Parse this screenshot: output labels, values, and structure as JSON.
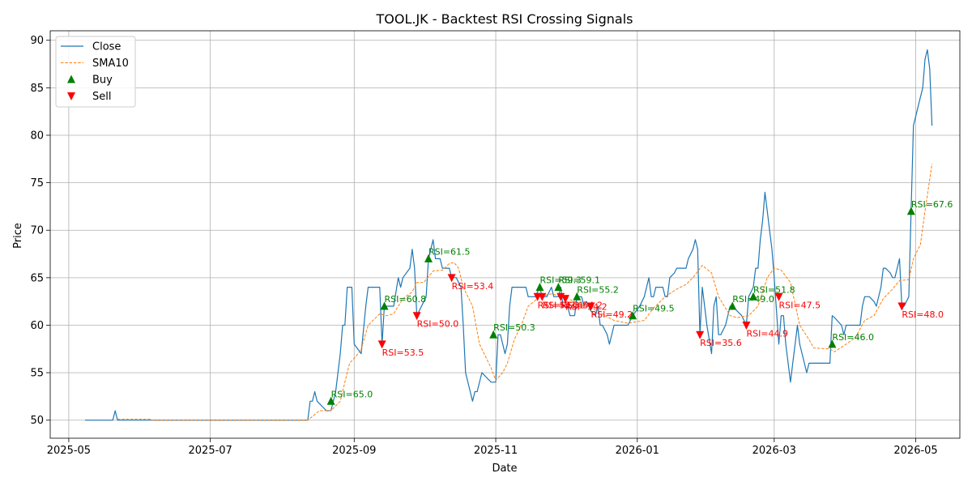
{
  "chart_data": {
    "type": "line",
    "title": "TOOL.JK - Backtest RSI Crossing Signals",
    "xlabel": "Date",
    "ylabel": "Price",
    "xlim": [
      "2025-04-23",
      "2026-05-20"
    ],
    "ylim": [
      48.1,
      91.0
    ],
    "x_ticks": [
      "2025-05-01",
      "2025-07-01",
      "2025-09-01",
      "2025-11-01",
      "2026-01-01",
      "2026-03-01",
      "2026-05-01"
    ],
    "x_tick_labels": [
      "2025-05",
      "2025-07",
      "2025-09",
      "2025-11",
      "2026-01",
      "2026-03",
      "2026-05"
    ],
    "y_ticks": [
      50,
      55,
      60,
      65,
      70,
      75,
      80,
      85,
      90
    ],
    "grid": true,
    "legend_position": "upper-left",
    "colors": {
      "close": "#1f77b4",
      "sma": "#ff7f0e",
      "buy": "green",
      "sell": "red"
    },
    "legend": [
      {
        "label": "Close",
        "kind": "line"
      },
      {
        "label": "SMA10",
        "kind": "dashed"
      },
      {
        "label": "Buy",
        "kind": "up-triangle"
      },
      {
        "label": "Sell",
        "kind": "down-triangle"
      }
    ],
    "close": [
      [
        "2025-05-08",
        50
      ],
      [
        "2025-05-20",
        50
      ],
      [
        "2025-05-21",
        51
      ],
      [
        "2025-05-22",
        50
      ],
      [
        "2025-06-01",
        50
      ],
      [
        "2025-08-12",
        50
      ],
      [
        "2025-08-13",
        52
      ],
      [
        "2025-08-14",
        52
      ],
      [
        "2025-08-15",
        53
      ],
      [
        "2025-08-16",
        52
      ],
      [
        "2025-08-20",
        51
      ],
      [
        "2025-08-22",
        51
      ],
      [
        "2025-08-24",
        53
      ],
      [
        "2025-08-26",
        57
      ],
      [
        "2025-08-27",
        60
      ],
      [
        "2025-08-28",
        60
      ],
      [
        "2025-08-29",
        64
      ],
      [
        "2025-08-31",
        64
      ],
      [
        "2025-09-01",
        58
      ],
      [
        "2025-09-04",
        57
      ],
      [
        "2025-09-06",
        62
      ],
      [
        "2025-09-07",
        64
      ],
      [
        "2025-09-12",
        64
      ],
      [
        "2025-09-13",
        58
      ],
      [
        "2025-09-14",
        62
      ],
      [
        "2025-09-16",
        62
      ],
      [
        "2025-09-18",
        62
      ],
      [
        "2025-09-20",
        65
      ],
      [
        "2025-09-21",
        64
      ],
      [
        "2025-09-22",
        65
      ],
      [
        "2025-09-25",
        66
      ],
      [
        "2025-09-26",
        68
      ],
      [
        "2025-09-27",
        66
      ],
      [
        "2025-09-28",
        61
      ],
      [
        "2025-09-30",
        62
      ],
      [
        "2025-10-02",
        63
      ],
      [
        "2025-10-03",
        67
      ],
      [
        "2025-10-05",
        69
      ],
      [
        "2025-10-06",
        67
      ],
      [
        "2025-10-08",
        67
      ],
      [
        "2025-10-09",
        66
      ],
      [
        "2025-10-12",
        66
      ],
      [
        "2025-10-13",
        65
      ],
      [
        "2025-10-15",
        65
      ],
      [
        "2025-10-17",
        64
      ],
      [
        "2025-10-18",
        60
      ],
      [
        "2025-10-19",
        55
      ],
      [
        "2025-10-21",
        53
      ],
      [
        "2025-10-22",
        52
      ],
      [
        "2025-10-23",
        53
      ],
      [
        "2025-10-24",
        53
      ],
      [
        "2025-10-26",
        55
      ],
      [
        "2025-10-28",
        54.5
      ],
      [
        "2025-10-30",
        54
      ],
      [
        "2025-11-01",
        54
      ],
      [
        "2025-11-02",
        59
      ],
      [
        "2025-11-03",
        59
      ],
      [
        "2025-11-05",
        57
      ],
      [
        "2025-11-06",
        58
      ],
      [
        "2025-11-07",
        62
      ],
      [
        "2025-11-08",
        64
      ],
      [
        "2025-11-14",
        64
      ],
      [
        "2025-11-15",
        63
      ],
      [
        "2025-11-18",
        63
      ],
      [
        "2025-11-20",
        64
      ],
      [
        "2025-11-21",
        63
      ],
      [
        "2025-11-23",
        63
      ],
      [
        "2025-11-25",
        64
      ],
      [
        "2025-11-26",
        63
      ],
      [
        "2025-11-28",
        63
      ],
      [
        "2025-11-29",
        64
      ],
      [
        "2025-11-30",
        62
      ],
      [
        "2025-12-02",
        62
      ],
      [
        "2025-12-03",
        61
      ],
      [
        "2025-12-05",
        61
      ],
      [
        "2025-12-06",
        63
      ],
      [
        "2025-12-08",
        63
      ],
      [
        "2025-12-09",
        62
      ],
      [
        "2025-12-10",
        62.5
      ],
      [
        "2025-12-12",
        61.5
      ],
      [
        "2025-12-14",
        61
      ],
      [
        "2025-12-15",
        62
      ],
      [
        "2025-12-16",
        60
      ],
      [
        "2025-12-17",
        60
      ],
      [
        "2025-12-19",
        59
      ],
      [
        "2025-12-20",
        58
      ],
      [
        "2025-12-22",
        60
      ],
      [
        "2025-12-28",
        60
      ],
      [
        "2025-12-30",
        61
      ],
      [
        "2026-01-02",
        62
      ],
      [
        "2026-01-04",
        63
      ],
      [
        "2026-01-06",
        65
      ],
      [
        "2026-01-07",
        63
      ],
      [
        "2026-01-08",
        63
      ],
      [
        "2026-01-09",
        64
      ],
      [
        "2026-01-12",
        64
      ],
      [
        "2026-01-13",
        63
      ],
      [
        "2026-01-14",
        63
      ],
      [
        "2026-01-15",
        65
      ],
      [
        "2026-01-17",
        65.5
      ],
      [
        "2026-01-18",
        66
      ],
      [
        "2026-01-20",
        66
      ],
      [
        "2026-01-22",
        66
      ],
      [
        "2026-01-23",
        67
      ],
      [
        "2026-01-25",
        68
      ],
      [
        "2026-01-26",
        69
      ],
      [
        "2026-01-27",
        68
      ],
      [
        "2026-01-28",
        59
      ],
      [
        "2026-01-29",
        64
      ],
      [
        "2026-01-30",
        62
      ],
      [
        "2026-01-31",
        60
      ],
      [
        "2026-02-02",
        57
      ],
      [
        "2026-02-03",
        62
      ],
      [
        "2026-02-04",
        63
      ],
      [
        "2026-02-05",
        59
      ],
      [
        "2026-02-06",
        59
      ],
      [
        "2026-02-08",
        60
      ],
      [
        "2026-02-10",
        62
      ],
      [
        "2026-02-11",
        62
      ],
      [
        "2026-02-13",
        61.5
      ],
      [
        "2026-02-15",
        61
      ],
      [
        "2026-02-17",
        60
      ],
      [
        "2026-02-18",
        63
      ],
      [
        "2026-02-20",
        64
      ],
      [
        "2026-02-21",
        66
      ],
      [
        "2026-02-22",
        66
      ],
      [
        "2026-02-23",
        69
      ],
      [
        "2026-02-24",
        71
      ],
      [
        "2026-02-25",
        74
      ],
      [
        "2026-02-27",
        70
      ],
      [
        "2026-02-28",
        68
      ],
      [
        "2026-03-01",
        65
      ],
      [
        "2026-03-03",
        58
      ],
      [
        "2026-03-04",
        61
      ],
      [
        "2026-03-05",
        61
      ],
      [
        "2026-03-06",
        58
      ],
      [
        "2026-03-08",
        54
      ],
      [
        "2026-03-09",
        56
      ],
      [
        "2026-03-11",
        60
      ],
      [
        "2026-03-12",
        58
      ],
      [
        "2026-03-14",
        56
      ],
      [
        "2026-03-15",
        55
      ],
      [
        "2026-03-16",
        56
      ],
      [
        "2026-03-25",
        56
      ],
      [
        "2026-03-26",
        61
      ],
      [
        "2026-03-27",
        60.8
      ],
      [
        "2026-03-30",
        60
      ],
      [
        "2026-03-31",
        59
      ],
      [
        "2026-04-01",
        60
      ],
      [
        "2026-04-07",
        60
      ],
      [
        "2026-04-08",
        62
      ],
      [
        "2026-04-09",
        63
      ],
      [
        "2026-04-11",
        63
      ],
      [
        "2026-04-13",
        62.5
      ],
      [
        "2026-04-14",
        62
      ],
      [
        "2026-04-16",
        64
      ],
      [
        "2026-04-17",
        66
      ],
      [
        "2026-04-18",
        66
      ],
      [
        "2026-04-20",
        65.5
      ],
      [
        "2026-04-21",
        65
      ],
      [
        "2026-04-22",
        65
      ],
      [
        "2026-04-24",
        67
      ],
      [
        "2026-04-25",
        62
      ],
      [
        "2026-04-26",
        62
      ],
      [
        "2026-04-28",
        63
      ],
      [
        "2026-04-29",
        72
      ],
      [
        "2026-04-30",
        81
      ],
      [
        "2026-05-02",
        83
      ],
      [
        "2026-05-04",
        85
      ],
      [
        "2026-05-05",
        88
      ],
      [
        "2026-05-06",
        89
      ],
      [
        "2026-05-07",
        87
      ],
      [
        "2026-05-08",
        81
      ]
    ],
    "sma10": [
      [
        "2025-05-22",
        50.1
      ],
      [
        "2025-06-05",
        50.1
      ],
      [
        "2025-06-06",
        50
      ],
      [
        "2025-08-12",
        50
      ],
      [
        "2025-08-15",
        50.6
      ],
      [
        "2025-08-17",
        51
      ],
      [
        "2025-08-22",
        51
      ],
      [
        "2025-08-26",
        52
      ],
      [
        "2025-08-28",
        54
      ],
      [
        "2025-08-30",
        56
      ],
      [
        "2025-09-02",
        56.8
      ],
      [
        "2025-09-04",
        57.5
      ],
      [
        "2025-09-07",
        60
      ],
      [
        "2025-09-12",
        61.2
      ],
      [
        "2025-09-15",
        61
      ],
      [
        "2025-09-18",
        61.2
      ],
      [
        "2025-09-22",
        62.8
      ],
      [
        "2025-09-26",
        63.5
      ],
      [
        "2025-09-28",
        64.5
      ],
      [
        "2025-10-01",
        64.5
      ],
      [
        "2025-10-05",
        65.7
      ],
      [
        "2025-10-09",
        65.8
      ],
      [
        "2025-10-12",
        66.5
      ],
      [
        "2025-10-14",
        66.6
      ],
      [
        "2025-10-16",
        66
      ],
      [
        "2025-10-18",
        64
      ],
      [
        "2025-10-20",
        63
      ],
      [
        "2025-10-22",
        62
      ],
      [
        "2025-10-25",
        58
      ],
      [
        "2025-10-28",
        56.5
      ],
      [
        "2025-10-30",
        55.5
      ],
      [
        "2025-11-01",
        54.2
      ],
      [
        "2025-11-04",
        55
      ],
      [
        "2025-11-06",
        56
      ],
      [
        "2025-11-09",
        58.5
      ],
      [
        "2025-11-12",
        60
      ],
      [
        "2025-11-15",
        62
      ],
      [
        "2025-11-20",
        63
      ],
      [
        "2025-11-25",
        63.3
      ],
      [
        "2025-11-30",
        63
      ],
      [
        "2025-12-05",
        62.5
      ],
      [
        "2025-12-10",
        62
      ],
      [
        "2025-12-15",
        61.5
      ],
      [
        "2025-12-18",
        61
      ],
      [
        "2025-12-22",
        60.5
      ],
      [
        "2025-12-28",
        60.2
      ],
      [
        "2026-01-04",
        60.5
      ],
      [
        "2026-01-08",
        61.8
      ],
      [
        "2026-01-13",
        63
      ],
      [
        "2026-01-18",
        63.8
      ],
      [
        "2026-01-22",
        64.3
      ],
      [
        "2026-01-25",
        65
      ],
      [
        "2026-01-29",
        66.3
      ],
      [
        "2026-02-02",
        65.5
      ],
      [
        "2026-02-05",
        63
      ],
      [
        "2026-02-10",
        61
      ],
      [
        "2026-02-13",
        60.8
      ],
      [
        "2026-02-18",
        61
      ],
      [
        "2026-02-22",
        62
      ],
      [
        "2026-02-26",
        65
      ],
      [
        "2026-03-01",
        66
      ],
      [
        "2026-03-04",
        65.8
      ],
      [
        "2026-03-08",
        64.5
      ],
      [
        "2026-03-12",
        60
      ],
      [
        "2026-03-16",
        58.5
      ],
      [
        "2026-03-18",
        57.6
      ],
      [
        "2026-03-25",
        57.5
      ],
      [
        "2026-03-27",
        57.2
      ],
      [
        "2026-04-01",
        58
      ],
      [
        "2026-04-05",
        58.7
      ],
      [
        "2026-04-09",
        60.5
      ],
      [
        "2026-04-13",
        61
      ],
      [
        "2026-04-17",
        62.8
      ],
      [
        "2026-04-21",
        63.8
      ],
      [
        "2026-04-24",
        64.7
      ],
      [
        "2026-04-28",
        64.8
      ],
      [
        "2026-04-30",
        67
      ],
      [
        "2026-05-03",
        68.5
      ],
      [
        "2026-05-05",
        72
      ],
      [
        "2026-05-08",
        77
      ]
    ],
    "buy_signals": [
      {
        "date": "2025-08-22",
        "price": 52,
        "label": "RSI=65.0"
      },
      {
        "date": "2025-09-14",
        "price": 62,
        "label": "RSI=60.8"
      },
      {
        "date": "2025-10-03",
        "price": 67,
        "label": "RSI=61.5"
      },
      {
        "date": "2025-10-31",
        "price": 59,
        "label": "RSI=50.3"
      },
      {
        "date": "2025-11-20",
        "price": 64,
        "label": "RSI=59.3"
      },
      {
        "date": "2025-11-28",
        "price": 64,
        "label": "RSI=59.1"
      },
      {
        "date": "2025-12-06",
        "price": 63,
        "label": "RSI=55.2"
      },
      {
        "date": "2025-12-30",
        "price": 61,
        "label": "RSI=49.5"
      },
      {
        "date": "2026-02-11",
        "price": 62,
        "label": "RSI=49.0"
      },
      {
        "date": "2026-02-20",
        "price": 63,
        "label": "RSI=51.8"
      },
      {
        "date": "2026-03-26",
        "price": 58,
        "label": "RSI=46.0"
      },
      {
        "date": "2026-04-29",
        "price": 72,
        "label": "RSI=67.6"
      }
    ],
    "sell_signals": [
      {
        "date": "2025-09-13",
        "price": 58,
        "label": "RSI=53.5"
      },
      {
        "date": "2025-09-28",
        "price": 61,
        "label": "RSI=50.0"
      },
      {
        "date": "2025-10-13",
        "price": 65,
        "label": "RSI=53.4"
      },
      {
        "date": "2025-11-19",
        "price": 63,
        "label": "RSI=52.3"
      },
      {
        "date": "2025-11-21",
        "price": 63,
        "label": "RSI=52.1"
      },
      {
        "date": "2025-11-29",
        "price": 63,
        "label": "RSI=54.2"
      },
      {
        "date": "2025-12-01",
        "price": 62.8,
        "label": "RSI=54.2"
      },
      {
        "date": "2025-12-12",
        "price": 62,
        "label": "RSI=49.2"
      },
      {
        "date": "2026-01-28",
        "price": 59,
        "label": "RSI=35.6"
      },
      {
        "date": "2026-02-17",
        "price": 60,
        "label": "RSI=44.9"
      },
      {
        "date": "2026-03-03",
        "price": 63,
        "label": "RSI=47.5"
      },
      {
        "date": "2026-04-25",
        "price": 62,
        "label": "RSI=48.0"
      }
    ]
  }
}
